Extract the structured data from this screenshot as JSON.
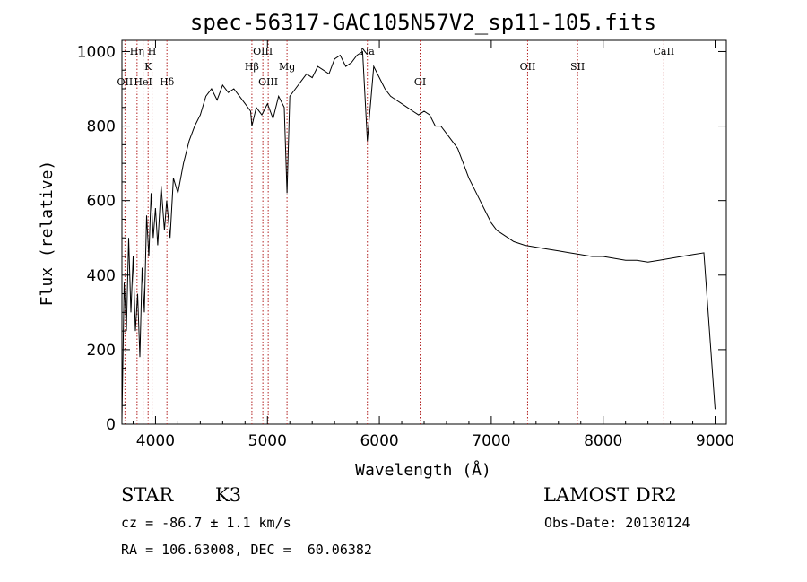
{
  "chart_data": {
    "type": "line",
    "title": "spec-56317-GAC105N57V2_sp11-105.fits",
    "xlabel": "Wavelength (Å)",
    "ylabel": "Flux (relative)",
    "xlim": [
      3700,
      9100
    ],
    "ylim": [
      0,
      1030
    ],
    "xticks": [
      4000,
      5000,
      6000,
      7000,
      8000,
      9000
    ],
    "yticks": [
      0,
      200,
      400,
      600,
      800,
      1000
    ],
    "grid": false,
    "line_color": "#000000",
    "marker_color": "#b22222",
    "series": [
      {
        "x": [
          3700,
          3720,
          3740,
          3760,
          3780,
          3800,
          3820,
          3840,
          3860,
          3880,
          3900,
          3920,
          3940,
          3960,
          3980,
          4000,
          4020,
          4050,
          4080,
          4100,
          4130,
          4160,
          4200,
          4250,
          4300,
          4350,
          4400,
          4450,
          4500,
          4550,
          4600,
          4650,
          4700,
          4750,
          4800,
          4850,
          4861,
          4900,
          4950,
          5000,
          5050,
          5100,
          5150,
          5175,
          5200,
          5250,
          5300,
          5350,
          5400,
          5450,
          5500,
          5550,
          5600,
          5650,
          5700,
          5750,
          5800,
          5850,
          5893,
          5950,
          6000,
          6050,
          6100,
          6150,
          6200,
          6250,
          6300,
          6350,
          6400,
          6450,
          6500,
          6550,
          6600,
          6650,
          6700,
          6750,
          6800,
          6850,
          6900,
          6950,
          7000,
          7050,
          7100,
          7150,
          7200,
          7300,
          7400,
          7500,
          7600,
          7700,
          7800,
          7900,
          8000,
          8100,
          8200,
          8300,
          8400,
          8500,
          8600,
          8700,
          8800,
          8900,
          9000
        ],
        "values": [
          10,
          380,
          250,
          500,
          300,
          450,
          250,
          350,
          180,
          420,
          300,
          560,
          450,
          620,
          500,
          580,
          480,
          640,
          520,
          600,
          500,
          660,
          620,
          700,
          760,
          800,
          830,
          880,
          900,
          870,
          910,
          890,
          900,
          880,
          860,
          840,
          800,
          850,
          830,
          860,
          820,
          880,
          850,
          620,
          880,
          900,
          920,
          940,
          930,
          960,
          950,
          940,
          980,
          990,
          960,
          970,
          990,
          1000,
          760,
          960,
          930,
          900,
          880,
          870,
          860,
          850,
          840,
          830,
          840,
          830,
          800,
          800,
          780,
          760,
          740,
          700,
          660,
          630,
          600,
          570,
          540,
          520,
          510,
          500,
          490,
          480,
          475,
          470,
          465,
          460,
          455,
          450,
          450,
          445,
          440,
          440,
          435,
          440,
          445,
          450,
          455,
          460,
          40
        ]
      }
    ],
    "lines": [
      {
        "label": "OII",
        "x": 3727,
        "row": 2
      },
      {
        "label": "Hη",
        "x": 3835,
        "row": 0
      },
      {
        "label": "K",
        "x": 3934,
        "row": 1
      },
      {
        "label": "HeI",
        "x": 3889,
        "row": 2
      },
      {
        "label": "H",
        "x": 3969,
        "row": 0
      },
      {
        "label": "Hδ",
        "x": 4102,
        "row": 2
      },
      {
        "label": "Hβ",
        "x": 4861,
        "row": 1
      },
      {
        "label": "OIII",
        "x": 4959,
        "row": 0
      },
      {
        "label": "OIII",
        "x": 5007,
        "row": 2
      },
      {
        "label": "Mg",
        "x": 5175,
        "row": 1
      },
      {
        "label": "Na",
        "x": 5893,
        "row": 0
      },
      {
        "label": "OI",
        "x": 6364,
        "row": 2
      },
      {
        "label": "OII",
        "x": 7325,
        "row": 1
      },
      {
        "label": "SII",
        "x": 7771,
        "row": 1
      },
      {
        "label": "CaII",
        "x": 8542,
        "row": 0
      }
    ]
  },
  "info": {
    "class": "STAR",
    "subclass": "K3",
    "survey": "LAMOST DR2",
    "cz": "cz = -86.7 ± 1.1 km/s",
    "obs_date": "Obs-Date: 20130124",
    "radec": "RA = 106.63008, DEC =  60.06382"
  }
}
